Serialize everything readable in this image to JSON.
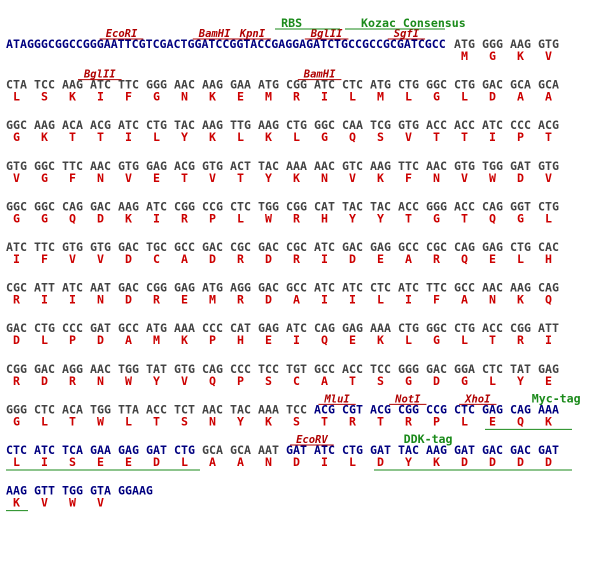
{
  "header": {
    "prefix": "ATAGGGCGGCCGGGAATTCGTCGACTGGATCCGGTACCGAGGAGATCTGCCGCCGCGATCGCC"
  },
  "lines": [
    {
      "codons": [
        "ATG",
        "GGG",
        "AAG",
        "GTG"
      ],
      "protein": [
        "M",
        "G",
        "K",
        "V"
      ]
    },
    {
      "codons": [
        "CTA",
        "TCC",
        "AAG",
        "ATC",
        "TTC",
        "GGG",
        "AAC",
        "AAG",
        "GAA",
        "ATG",
        "CGG",
        "ATC",
        "CTC",
        "ATG",
        "CTG",
        "GGC",
        "CTG",
        "GAC",
        "GCA",
        "GCA"
      ],
      "protein": [
        "L",
        "S",
        "K",
        "I",
        "F",
        "G",
        "N",
        "K",
        "E",
        "M",
        "R",
        "I",
        "L",
        "M",
        "L",
        "G",
        "L",
        "D",
        "A",
        "A"
      ]
    },
    {
      "codons": [
        "GGC",
        "AAG",
        "ACA",
        "ACG",
        "ATC",
        "CTG",
        "TAC",
        "AAG",
        "TTG",
        "AAG",
        "CTG",
        "GGC",
        "CAA",
        "TCG",
        "GTG",
        "ACC",
        "ACC",
        "ATC",
        "CCC",
        "ACG"
      ],
      "protein": [
        "G",
        "K",
        "T",
        "T",
        "I",
        "L",
        "Y",
        "K",
        "L",
        "K",
        "L",
        "G",
        "Q",
        "S",
        "V",
        "T",
        "T",
        "I",
        "P",
        "T"
      ]
    },
    {
      "codons": [
        "GTG",
        "GGC",
        "TTC",
        "AAC",
        "GTG",
        "GAG",
        "ACG",
        "GTG",
        "ACT",
        "TAC",
        "AAA",
        "AAC",
        "GTC",
        "AAG",
        "TTC",
        "AAC",
        "GTG",
        "TGG",
        "GAT",
        "GTG"
      ],
      "protein": [
        "V",
        "G",
        "F",
        "N",
        "V",
        "E",
        "T",
        "V",
        "T",
        "Y",
        "K",
        "N",
        "V",
        "K",
        "F",
        "N",
        "V",
        "W",
        "D",
        "V"
      ]
    },
    {
      "codons": [
        "GGC",
        "GGC",
        "CAG",
        "GAC",
        "AAG",
        "ATC",
        "CGG",
        "CCG",
        "CTC",
        "TGG",
        "CGG",
        "CAT",
        "TAC",
        "TAC",
        "ACC",
        "GGG",
        "ACC",
        "CAG",
        "GGT",
        "CTG"
      ],
      "protein": [
        "G",
        "G",
        "Q",
        "D",
        "K",
        "I",
        "R",
        "P",
        "L",
        "W",
        "R",
        "H",
        "Y",
        "Y",
        "T",
        "G",
        "T",
        "Q",
        "G",
        "L"
      ]
    },
    {
      "codons": [
        "ATC",
        "TTC",
        "GTG",
        "GTG",
        "GAC",
        "TGC",
        "GCC",
        "GAC",
        "CGC",
        "GAC",
        "CGC",
        "ATC",
        "GAC",
        "GAG",
        "GCC",
        "CGC",
        "CAG",
        "GAG",
        "CTG",
        "CAC"
      ],
      "protein": [
        "I",
        "F",
        "V",
        "V",
        "D",
        "C",
        "A",
        "D",
        "R",
        "D",
        "R",
        "I",
        "D",
        "E",
        "A",
        "R",
        "Q",
        "E",
        "L",
        "H"
      ]
    },
    {
      "codons": [
        "CGC",
        "ATT",
        "ATC",
        "AAT",
        "GAC",
        "CGG",
        "GAG",
        "ATG",
        "AGG",
        "GAC",
        "GCC",
        "ATC",
        "ATC",
        "CTC",
        "ATC",
        "TTC",
        "GCC",
        "AAC",
        "AAG",
        "CAG"
      ],
      "protein": [
        "R",
        "I",
        "I",
        "N",
        "D",
        "R",
        "E",
        "M",
        "R",
        "D",
        "A",
        "I",
        "I",
        "L",
        "I",
        "F",
        "A",
        "N",
        "K",
        "Q"
      ]
    },
    {
      "codons": [
        "GAC",
        "CTG",
        "CCC",
        "GAT",
        "GCC",
        "ATG",
        "AAA",
        "CCC",
        "CAT",
        "GAG",
        "ATC",
        "CAG",
        "GAG",
        "AAA",
        "CTG",
        "GGC",
        "CTG",
        "ACC",
        "CGG",
        "ATT"
      ],
      "protein": [
        "D",
        "L",
        "P",
        "D",
        "A",
        "M",
        "K",
        "P",
        "H",
        "E",
        "I",
        "Q",
        "E",
        "K",
        "L",
        "G",
        "L",
        "T",
        "R",
        "I"
      ]
    },
    {
      "codons": [
        "CGG",
        "GAC",
        "AGG",
        "AAC",
        "TGG",
        "TAT",
        "GTG",
        "CAG",
        "CCC",
        "TCC",
        "TGT",
        "GCC",
        "ACC",
        "TCC",
        "GGG",
        "GAC",
        "GGA",
        "CTC",
        "TAT",
        "GAG"
      ],
      "protein": [
        "R",
        "D",
        "R",
        "N",
        "W",
        "Y",
        "V",
        "Q",
        "P",
        "S",
        "C",
        "A",
        "T",
        "S",
        "G",
        "D",
        "G",
        "L",
        "Y",
        "E"
      ]
    },
    {
      "codons": [
        "GGG",
        "CTC",
        "ACA",
        "TGG",
        "TTA",
        "ACC",
        "TCT",
        "AAC",
        "TAC",
        "AAA",
        "TCC",
        "ACG",
        "CGT",
        "ACG",
        "CGG",
        "CCG",
        "CTC",
        "GAG",
        "CAG",
        "AAA"
      ],
      "protein": [
        "G",
        "L",
        "T",
        "W",
        "L",
        "T",
        "S",
        "N",
        "Y",
        "K",
        "S",
        "T",
        "R",
        "T",
        "R",
        "P",
        "L",
        "E",
        "Q",
        "K"
      ]
    },
    {
      "codons": [
        "CTC",
        "ATC",
        "TCA",
        "GAA",
        "GAG",
        "GAT",
        "CTG",
        "GCA",
        "GCA",
        "AAT",
        "GAT",
        "ATC",
        "CTG",
        "GAT",
        "TAC",
        "AAG",
        "GAT",
        "GAC",
        "GAC",
        "GAT"
      ],
      "protein": [
        "L",
        "I",
        "S",
        "E",
        "E",
        "D",
        "L",
        "A",
        "A",
        "N",
        "D",
        "I",
        "L",
        "D",
        "Y",
        "K",
        "D",
        "D",
        "D",
        "D"
      ]
    },
    {
      "codons": [
        "AAG",
        "GTT",
        "TGG",
        "GTA"
      ],
      "tail": "GGAAG",
      "protein": [
        "K",
        "V",
        "W",
        "V"
      ]
    }
  ],
  "sites": [
    {
      "line": 0,
      "label": "EcoRI"
    },
    {
      "line": 0,
      "label": "BamHI"
    },
    {
      "line": 0,
      "label": "KpnI"
    },
    {
      "line": 0,
      "label": "BglII"
    },
    {
      "line": 0,
      "label": "SgfI"
    },
    {
      "line": 1,
      "label": "BglII"
    },
    {
      "line": 1,
      "label": "BamHI"
    },
    {
      "line": 9,
      "label": "MluI"
    },
    {
      "line": 9,
      "label": "NotI"
    },
    {
      "line": 9,
      "label": "XhoI"
    },
    {
      "line": 10,
      "label": "EcoRV"
    }
  ],
  "features": [
    {
      "line": 0,
      "label": "RBS"
    },
    {
      "line": 0,
      "label": "Kozac Consensus"
    },
    {
      "line": 9,
      "label": "Myc-tag"
    },
    {
      "line": 10,
      "label": "DDK-tag"
    }
  ]
}
